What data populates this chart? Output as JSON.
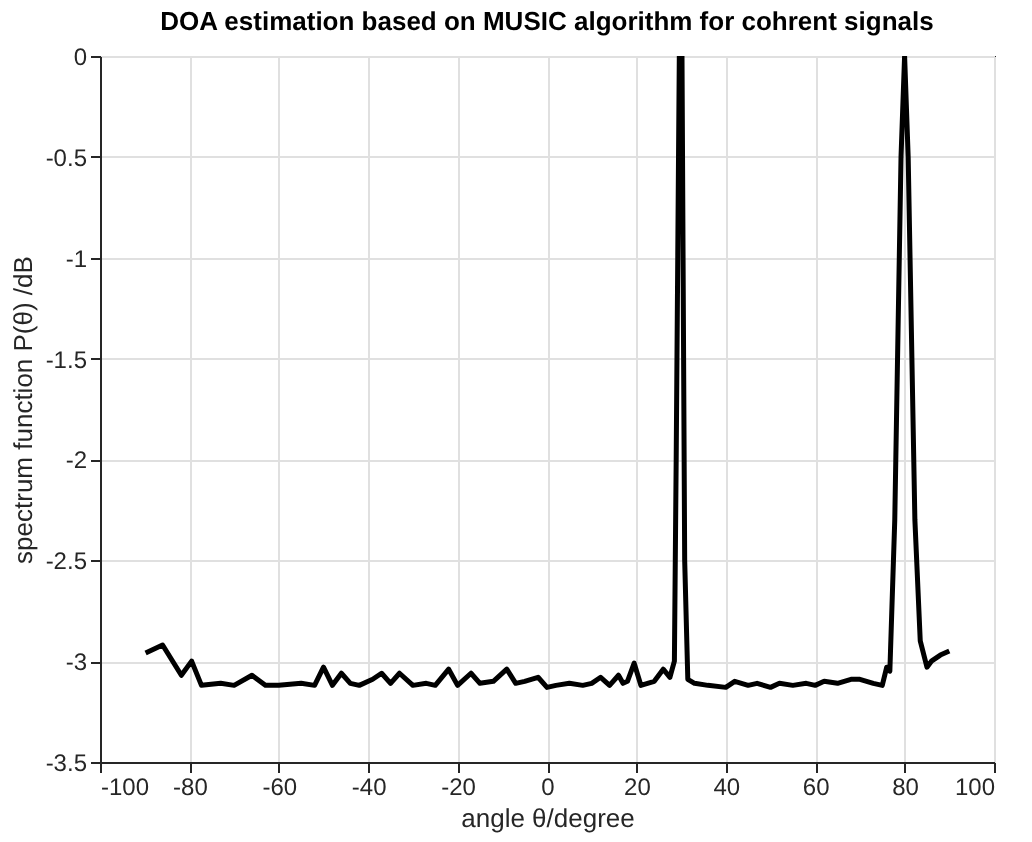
{
  "chart_data": {
    "type": "line",
    "title": "DOA estimation based on MUSIC algorithm for cohrent signals",
    "xlabel": "angle θ/degree",
    "ylabel": "spectrum function P(θ) /dB",
    "x": [
      -89.8,
      -86,
      -81.8,
      -79.5,
      -77.3,
      -73,
      -70,
      -66,
      -63,
      -60,
      -55,
      -52,
      -50,
      -48,
      -46,
      -44,
      -42,
      -39,
      -37,
      -35,
      -33,
      -30,
      -27,
      -25,
      -22,
      -20,
      -17,
      -15,
      -12,
      -9,
      -7,
      -5,
      -2,
      0,
      2,
      5,
      8,
      10,
      12,
      14,
      16,
      17,
      18,
      19.5,
      21,
      24,
      26,
      27.5,
      28.5,
      28.9,
      29.6,
      30.2,
      30.8,
      31.5,
      33,
      36,
      40,
      42,
      45,
      47,
      50,
      52,
      55,
      58,
      60,
      62,
      65,
      68,
      70,
      73,
      75,
      76,
      76.7,
      77.8,
      79.2,
      80,
      80.8,
      82.3,
      83.5,
      85,
      86,
      88,
      90
    ],
    "values": [
      -2.96,
      -2.92,
      -3.07,
      -3.0,
      -3.12,
      -3.11,
      -3.12,
      -3.07,
      -3.12,
      -3.12,
      -3.11,
      -3.12,
      -3.03,
      -3.12,
      -3.06,
      -3.11,
      -3.12,
      -3.09,
      -3.06,
      -3.11,
      -3.06,
      -3.12,
      -3.11,
      -3.12,
      -3.04,
      -3.12,
      -3.06,
      -3.11,
      -3.1,
      -3.04,
      -3.11,
      -3.1,
      -3.08,
      -3.13,
      -3.12,
      -3.11,
      -3.12,
      -3.11,
      -3.08,
      -3.12,
      -3.07,
      -3.11,
      -3.1,
      -3.01,
      -3.12,
      -3.1,
      -3.04,
      -3.08,
      -3.0,
      -2.0,
      0,
      0,
      -2.5,
      -3.09,
      -3.11,
      -3.12,
      -3.13,
      -3.1,
      -3.12,
      -3.11,
      -3.13,
      -3.11,
      -3.12,
      -3.11,
      -3.12,
      -3.1,
      -3.11,
      -3.09,
      -3.09,
      -3.11,
      -3.12,
      -3.03,
      -3.05,
      -2.3,
      -0.5,
      0,
      -0.5,
      -2.3,
      -2.9,
      -3.03,
      -3.0,
      -2.97,
      -2.95
    ],
    "color": "#000000",
    "xlim": [
      -100,
      100
    ],
    "xticks": [
      -100,
      -80,
      -60,
      -40,
      -20,
      0,
      20,
      40,
      60,
      80,
      100
    ],
    "ylim": [
      -3.5,
      0
    ],
    "yticks": [
      -3.5,
      -3,
      -2.5,
      -2,
      -1.5,
      -1,
      -0.5,
      0
    ],
    "grid": true,
    "marker": "none",
    "line_style": "solid"
  }
}
